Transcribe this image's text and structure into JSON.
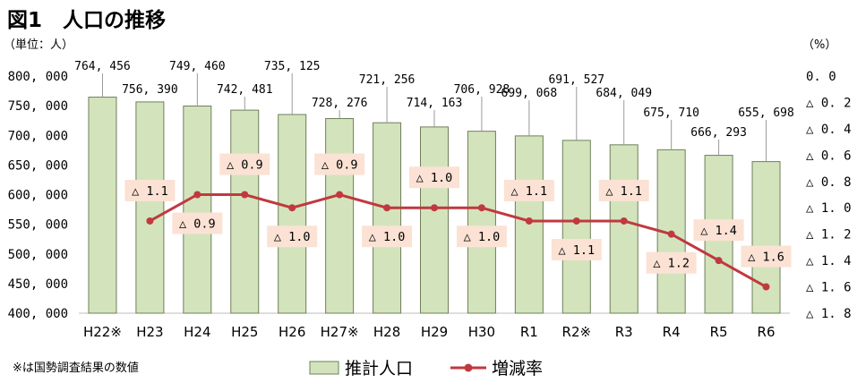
{
  "chart_data": {
    "type": "bar+line",
    "title": "図1　人口の推移",
    "left_unit": "（単位：人）",
    "right_unit": "（%）",
    "categories": [
      "H22※",
      "H23",
      "H24",
      "H25",
      "H26",
      "H27※",
      "H28",
      "H29",
      "H30",
      "R1",
      "R2※",
      "R3",
      "R4",
      "R5",
      "R6"
    ],
    "bar_series": {
      "name": "推計人口",
      "values": [
        764456,
        756390,
        749460,
        742481,
        735125,
        728276,
        721256,
        714163,
        706928,
        699068,
        691527,
        684049,
        675710,
        666293,
        655698
      ],
      "labels": [
        "764, 456",
        "756, 390",
        "749, 460",
        "742, 481",
        "735, 125",
        "728, 276",
        "721, 256",
        "714, 163",
        "706, 928",
        "699, 068",
        "691, 527",
        "684, 049",
        "675, 710",
        "666, 293",
        "655, 698"
      ],
      "color": "#d3e4bd",
      "stroke": "#6f7f5a"
    },
    "line_series": {
      "name": "増減率",
      "values": [
        null,
        -1.1,
        -0.9,
        -0.9,
        -1.0,
        -0.9,
        -1.0,
        -1.0,
        -1.0,
        -1.1,
        -1.1,
        -1.1,
        -1.2,
        -1.4,
        -1.6
      ],
      "labels": [
        "",
        "△ 1.1",
        "△ 0.9",
        "△ 0.9",
        "△ 1.0",
        "△ 0.9",
        "△ 1.0",
        "△ 1.0",
        "△ 1.0",
        "△ 1.1",
        "△ 1.1",
        "△ 1.1",
        "△ 1.2",
        "△ 1.4",
        "△ 1.6"
      ],
      "color": "#c0393f",
      "label_bg": "#fbe2d4"
    },
    "left_axis": {
      "ylim": [
        400000,
        800000
      ],
      "ticks": [
        "400, 000",
        "450, 000",
        "500, 000",
        "550, 000",
        "600, 000",
        "650, 000",
        "700, 000",
        "750, 000",
        "800, 000"
      ]
    },
    "right_axis": {
      "ylim": [
        -1.8,
        0
      ],
      "ticks": [
        "0. 0",
        "△ 0. 2",
        "△ 0. 4",
        "△ 0. 6",
        "△ 0. 8",
        "△ 1. 0",
        "△ 1. 2",
        "△ 1. 4",
        "△ 1. 6",
        "△ 1. 8"
      ]
    },
    "footnote": "※は国勢調査結果の数値",
    "legend_position": "bottom"
  }
}
